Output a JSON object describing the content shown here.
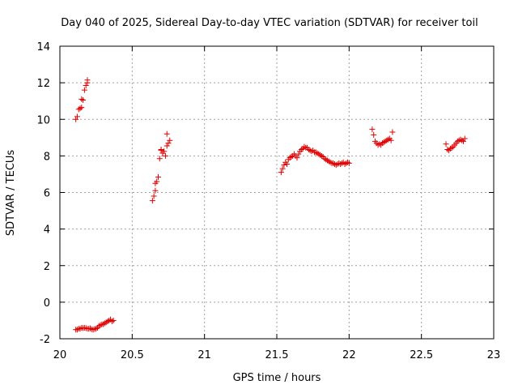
{
  "chart_data": {
    "type": "scatter",
    "title": "Day 040 of 2025, Sidereal Day-to-day VTEC variation (SDTVAR) for receiver toil",
    "xlabel": "GPS time / hours",
    "ylabel": "SDTVAR / TECUs",
    "xlim": [
      20,
      23
    ],
    "ylim": [
      -2,
      14
    ],
    "xticks": [
      "20",
      "20.5",
      "21",
      "21.5",
      "22",
      "22.5",
      "23"
    ],
    "yticks": [
      "-2",
      "0",
      "2",
      "4",
      "6",
      "8",
      "10",
      "12",
      "14"
    ],
    "grid": true,
    "marker": "+",
    "color": "#e00000",
    "series": [
      {
        "name": "SDTVAR",
        "points": [
          [
            20.11,
            10.0
          ],
          [
            20.12,
            10.15
          ],
          [
            20.13,
            10.55
          ],
          [
            20.14,
            10.6
          ],
          [
            20.15,
            10.65
          ],
          [
            20.15,
            11.1
          ],
          [
            20.16,
            11.05
          ],
          [
            20.17,
            11.6
          ],
          [
            20.18,
            11.85
          ],
          [
            20.19,
            12.0
          ],
          [
            20.19,
            12.15
          ],
          [
            20.11,
            -1.5
          ],
          [
            20.12,
            -1.5
          ],
          [
            20.13,
            -1.45
          ],
          [
            20.14,
            -1.45
          ],
          [
            20.15,
            -1.4
          ],
          [
            20.16,
            -1.42
          ],
          [
            20.17,
            -1.4
          ],
          [
            20.18,
            -1.42
          ],
          [
            20.19,
            -1.45
          ],
          [
            20.2,
            -1.45
          ],
          [
            20.21,
            -1.43
          ],
          [
            20.22,
            -1.48
          ],
          [
            20.23,
            -1.5
          ],
          [
            20.24,
            -1.47
          ],
          [
            20.25,
            -1.45
          ],
          [
            20.26,
            -1.4
          ],
          [
            20.27,
            -1.3
          ],
          [
            20.28,
            -1.25
          ],
          [
            20.29,
            -1.22
          ],
          [
            20.3,
            -1.2
          ],
          [
            20.31,
            -1.15
          ],
          [
            20.32,
            -1.1
          ],
          [
            20.33,
            -1.05
          ],
          [
            20.34,
            -1.0
          ],
          [
            20.35,
            -0.95
          ],
          [
            20.36,
            -1.05
          ],
          [
            20.37,
            -1.0
          ],
          [
            20.64,
            5.55
          ],
          [
            20.65,
            5.8
          ],
          [
            20.66,
            6.1
          ],
          [
            20.66,
            6.5
          ],
          [
            20.67,
            6.6
          ],
          [
            20.68,
            6.85
          ],
          [
            20.69,
            7.85
          ],
          [
            20.7,
            8.3
          ],
          [
            20.7,
            8.35
          ],
          [
            20.71,
            8.15
          ],
          [
            20.72,
            8.25
          ],
          [
            20.73,
            8.0
          ],
          [
            20.74,
            8.55
          ],
          [
            20.74,
            9.2
          ],
          [
            20.75,
            8.7
          ],
          [
            20.76,
            8.85
          ],
          [
            21.53,
            7.1
          ],
          [
            21.54,
            7.3
          ],
          [
            21.55,
            7.5
          ],
          [
            21.56,
            7.65
          ],
          [
            21.57,
            7.55
          ],
          [
            21.58,
            7.8
          ],
          [
            21.59,
            7.9
          ],
          [
            21.6,
            7.95
          ],
          [
            21.61,
            8.0
          ],
          [
            21.62,
            8.1
          ],
          [
            21.63,
            8.0
          ],
          [
            21.64,
            7.9
          ],
          [
            21.65,
            8.1
          ],
          [
            21.66,
            8.25
          ],
          [
            21.67,
            8.35
          ],
          [
            21.68,
            8.4
          ],
          [
            21.69,
            8.5
          ],
          [
            21.7,
            8.45
          ],
          [
            21.71,
            8.45
          ],
          [
            21.72,
            8.35
          ],
          [
            21.73,
            8.3
          ],
          [
            21.74,
            8.25
          ],
          [
            21.75,
            8.3
          ],
          [
            21.76,
            8.2
          ],
          [
            21.77,
            8.2
          ],
          [
            21.78,
            8.15
          ],
          [
            21.79,
            8.1
          ],
          [
            21.8,
            8.05
          ],
          [
            21.81,
            8.0
          ],
          [
            21.82,
            7.95
          ],
          [
            21.83,
            7.85
          ],
          [
            21.84,
            7.8
          ],
          [
            21.85,
            7.75
          ],
          [
            21.86,
            7.7
          ],
          [
            21.87,
            7.65
          ],
          [
            21.88,
            7.6
          ],
          [
            21.89,
            7.6
          ],
          [
            21.9,
            7.55
          ],
          [
            21.91,
            7.5
          ],
          [
            21.92,
            7.55
          ],
          [
            21.93,
            7.6
          ],
          [
            21.94,
            7.55
          ],
          [
            21.95,
            7.6
          ],
          [
            21.96,
            7.65
          ],
          [
            21.97,
            7.55
          ],
          [
            21.98,
            7.6
          ],
          [
            21.99,
            7.65
          ],
          [
            22.0,
            7.6
          ],
          [
            22.16,
            9.45
          ],
          [
            22.17,
            9.15
          ],
          [
            22.18,
            8.8
          ],
          [
            22.19,
            8.7
          ],
          [
            22.2,
            8.6
          ],
          [
            22.21,
            8.65
          ],
          [
            22.22,
            8.6
          ],
          [
            22.23,
            8.7
          ],
          [
            22.24,
            8.75
          ],
          [
            22.25,
            8.8
          ],
          [
            22.26,
            8.85
          ],
          [
            22.27,
            8.9
          ],
          [
            22.28,
            8.95
          ],
          [
            22.29,
            8.85
          ],
          [
            22.3,
            9.3
          ],
          [
            22.67,
            8.65
          ],
          [
            22.68,
            8.35
          ],
          [
            22.69,
            8.3
          ],
          [
            22.7,
            8.4
          ],
          [
            22.71,
            8.45
          ],
          [
            22.72,
            8.5
          ],
          [
            22.73,
            8.6
          ],
          [
            22.74,
            8.7
          ],
          [
            22.75,
            8.8
          ],
          [
            22.76,
            8.85
          ],
          [
            22.77,
            8.9
          ],
          [
            22.78,
            8.85
          ],
          [
            22.79,
            8.8
          ],
          [
            22.8,
            8.95
          ]
        ]
      }
    ]
  }
}
